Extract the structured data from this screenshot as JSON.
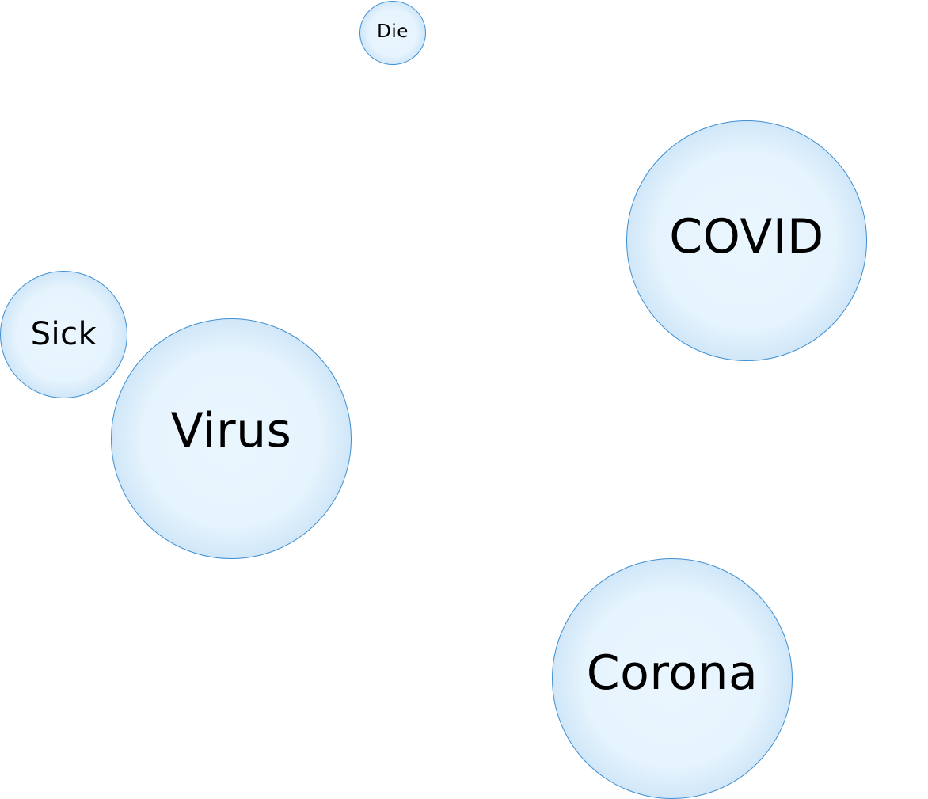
{
  "bubbles": [
    {
      "label": "Die"
    },
    {
      "label": "COVID"
    },
    {
      "label": "Sick"
    },
    {
      "label": "Virus"
    },
    {
      "label": "Corona"
    }
  ],
  "colors": {
    "bubble_edge": "#4a97d6",
    "bubble_fill": "#e6f4fd",
    "text": "#000000",
    "background": "#ffffff"
  }
}
